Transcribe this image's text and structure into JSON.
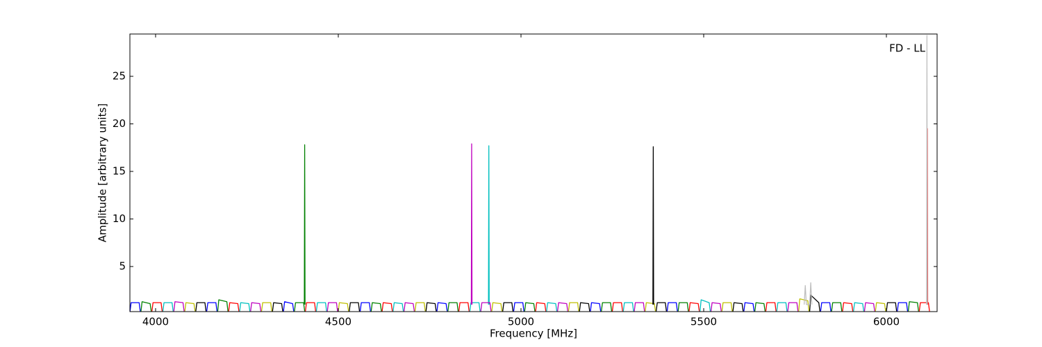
{
  "chart_data": {
    "type": "line",
    "annotation": "FD - LL",
    "x_label": "Frequency [MHz]",
    "y_label": "Amplitude [arbitrary units]",
    "xlim": [
      3929.7,
      6138.8
    ],
    "ylim": [
      0.26,
      29.45
    ],
    "xticks": [
      4000,
      4500,
      5000,
      5500,
      6000
    ],
    "yticks": [
      5,
      10,
      15,
      20,
      25
    ],
    "series": [
      {
        "color": "#0000ff",
        "x": [
          3930,
          3933,
          3955,
          3958,
          null,
          4140,
          4143,
          4165,
          4168,
          null,
          4350,
          4353,
          4375,
          4378,
          null,
          4560,
          4563,
          4585,
          4588,
          null,
          4770,
          4773,
          4795,
          4798,
          null,
          4980,
          4983,
          5005,
          5008,
          null,
          5190,
          5193,
          5215,
          5218,
          null,
          5400,
          5403,
          5425,
          5428,
          null,
          5610,
          5613,
          5635,
          5638,
          null,
          5820,
          5823,
          5845,
          5848,
          null,
          6030,
          6033,
          6055,
          6058
        ],
        "values": [
          0.3,
          1.2,
          1.2,
          0.3,
          null,
          0.3,
          1.2,
          1.2,
          0.3,
          null,
          0.3,
          1.3,
          1.1,
          0.3,
          null,
          0.3,
          1.2,
          1.2,
          0.3,
          null,
          0.3,
          1.2,
          1.1,
          0.3,
          null,
          0.3,
          1.2,
          1.2,
          0.3,
          null,
          0.3,
          1.2,
          1.1,
          0.3,
          null,
          0.3,
          1.2,
          1.2,
          0.3,
          null,
          0.3,
          1.2,
          1.1,
          0.3,
          null,
          0.3,
          1.2,
          1.2,
          0.3,
          null,
          0.3,
          1.2,
          1.2,
          0.3
        ]
      },
      {
        "color": "#008000",
        "x": [
          3960,
          3963,
          3985,
          3988,
          null,
          4170,
          4173,
          4195,
          4198,
          null,
          4380,
          4383,
          4405,
          4408,
          null,
          4590,
          4593,
          4615,
          4618,
          null,
          4800,
          4803,
          4825,
          4828,
          null,
          5010,
          5013,
          5035,
          5038,
          null,
          5220,
          5223,
          5245,
          5248,
          null,
          5430,
          5433,
          5455,
          5458,
          null,
          5640,
          5643,
          5665,
          5668,
          null,
          5850,
          5853,
          5875,
          5878,
          null,
          6060,
          6063,
          6085,
          6088,
          null,
          4407,
          4408,
          4409
        ],
        "values": [
          0.3,
          1.3,
          1.1,
          0.3,
          null,
          0.3,
          1.5,
          1.3,
          0.3,
          null,
          0.3,
          1.2,
          1.2,
          0.3,
          null,
          0.3,
          1.2,
          1.1,
          0.3,
          null,
          0.3,
          1.2,
          1.2,
          0.3,
          null,
          0.3,
          1.2,
          1.1,
          0.3,
          null,
          0.3,
          1.2,
          1.2,
          0.3,
          null,
          0.3,
          1.2,
          1.2,
          0.3,
          null,
          0.3,
          1.2,
          1.1,
          0.3,
          null,
          0.3,
          1.2,
          1.2,
          0.3,
          null,
          0.3,
          1.3,
          1.2,
          0.3,
          null,
          1,
          17.8,
          1
        ]
      },
      {
        "color": "#ff0000",
        "x": [
          3990,
          3993,
          4015,
          4018,
          null,
          4200,
          4203,
          4225,
          4228,
          null,
          4410,
          4413,
          4435,
          4438,
          null,
          4620,
          4623,
          4645,
          4648,
          null,
          4830,
          4833,
          4855,
          4858,
          null,
          5040,
          5043,
          5065,
          5068,
          null,
          5250,
          5253,
          5275,
          5278,
          null,
          5460,
          5463,
          5485,
          5488,
          null,
          5670,
          5673,
          5695,
          5698,
          null,
          5880,
          5883,
          5905,
          5908,
          null,
          6090,
          6093,
          6115,
          6118,
          null,
          6111,
          6112,
          6113
        ],
        "values": [
          0.3,
          1.2,
          1.2,
          0.3,
          null,
          0.3,
          1.2,
          1.1,
          0.3,
          null,
          0.3,
          1.2,
          1.2,
          0.3,
          null,
          0.3,
          1.2,
          1.1,
          0.3,
          null,
          0.3,
          1.2,
          1.2,
          0.3,
          null,
          0.3,
          1.2,
          1.1,
          0.3,
          null,
          0.3,
          1.2,
          1.2,
          0.3,
          null,
          0.3,
          1.2,
          1.1,
          0.3,
          null,
          0.3,
          1.2,
          1.2,
          0.3,
          null,
          0.3,
          1.2,
          1.1,
          0.3,
          null,
          0.3,
          1.2,
          1.2,
          0.3,
          null,
          1,
          19.5,
          1
        ]
      },
      {
        "color": "#00bfbf",
        "x": [
          4020,
          4023,
          4045,
          4048,
          null,
          4230,
          4233,
          4255,
          4258,
          null,
          4440,
          4443,
          4465,
          4468,
          null,
          4650,
          4653,
          4675,
          4678,
          null,
          4860,
          4863,
          4885,
          4888,
          null,
          5070,
          5073,
          5095,
          5098,
          null,
          5280,
          5283,
          5305,
          5308,
          null,
          5490,
          5493,
          5515,
          5518,
          null,
          5700,
          5703,
          5725,
          5728,
          null,
          5910,
          5913,
          5935,
          5938,
          null,
          4911,
          4912,
          4913
        ],
        "values": [
          0.3,
          1.2,
          1.2,
          0.3,
          null,
          0.3,
          1.2,
          1.1,
          0.3,
          null,
          0.3,
          1.2,
          1.2,
          0.3,
          null,
          0.3,
          1.2,
          1.1,
          0.3,
          null,
          0.3,
          1.2,
          1.2,
          0.3,
          null,
          0.3,
          1.2,
          1.1,
          0.3,
          null,
          0.3,
          1.2,
          1.2,
          0.3,
          null,
          0.3,
          1.5,
          1.2,
          0.3,
          null,
          0.3,
          1.2,
          1.2,
          0.3,
          null,
          0.3,
          1.2,
          1.1,
          0.3,
          null,
          1,
          17.7,
          1
        ]
      },
      {
        "color": "#bf00bf",
        "x": [
          4050,
          4053,
          4075,
          4078,
          null,
          4260,
          4263,
          4285,
          4288,
          null,
          4470,
          4473,
          4495,
          4498,
          null,
          4680,
          4683,
          4705,
          4708,
          null,
          4890,
          4893,
          4915,
          4918,
          null,
          5100,
          5103,
          5125,
          5128,
          null,
          5310,
          5313,
          5335,
          5338,
          null,
          5520,
          5523,
          5545,
          5548,
          null,
          5730,
          5733,
          5755,
          5758,
          null,
          5940,
          5943,
          5965,
          5968,
          null,
          4864,
          4865,
          4866
        ],
        "values": [
          0.3,
          1.3,
          1.2,
          0.3,
          null,
          0.3,
          1.2,
          1.1,
          0.3,
          null,
          0.3,
          1.2,
          1.2,
          0.3,
          null,
          0.3,
          1.2,
          1.1,
          0.3,
          null,
          0.3,
          1.2,
          1.2,
          0.3,
          null,
          0.3,
          1.2,
          1.1,
          0.3,
          null,
          0.3,
          1.2,
          1.2,
          0.3,
          null,
          0.3,
          1.2,
          1.1,
          0.3,
          null,
          0.3,
          1.2,
          1.2,
          0.3,
          null,
          0.3,
          1.2,
          1.1,
          0.3,
          null,
          1,
          17.9,
          1
        ]
      },
      {
        "color": "#bfbf00",
        "x": [
          4080,
          4083,
          4105,
          4108,
          null,
          4290,
          4293,
          4315,
          4318,
          null,
          4500,
          4503,
          4525,
          4528,
          null,
          4710,
          4713,
          4735,
          4738,
          null,
          4920,
          4923,
          4945,
          4948,
          null,
          5130,
          5133,
          5155,
          5158,
          null,
          5340,
          5343,
          5365,
          5368,
          null,
          5550,
          5553,
          5575,
          5578,
          null,
          5760,
          5763,
          5785,
          5788,
          null,
          5970,
          5973,
          5995,
          5998
        ],
        "values": [
          0.3,
          1.2,
          1.1,
          0.3,
          null,
          0.3,
          1.2,
          1.2,
          0.3,
          null,
          0.3,
          1.2,
          1.1,
          0.3,
          null,
          0.3,
          1.2,
          1.2,
          0.3,
          null,
          0.3,
          1.2,
          1.1,
          0.3,
          null,
          0.3,
          1.2,
          1.2,
          0.3,
          null,
          0.3,
          1.2,
          1.1,
          0.3,
          null,
          0.3,
          1.2,
          1.2,
          0.3,
          null,
          0.3,
          1.6,
          1.4,
          0.3,
          null,
          0.3,
          1.2,
          1.1,
          0.3
        ]
      },
      {
        "color": "#000000",
        "x": [
          4110,
          4113,
          4135,
          4138,
          null,
          4320,
          4323,
          4345,
          4348,
          null,
          4530,
          4533,
          4555,
          4558,
          null,
          4740,
          4743,
          4765,
          4768,
          null,
          4950,
          4953,
          4975,
          4978,
          null,
          5160,
          5163,
          5185,
          5188,
          null,
          5370,
          5373,
          5395,
          5398,
          null,
          5580,
          5583,
          5605,
          5608,
          null,
          5790,
          5793,
          5815,
          5818,
          null,
          6000,
          6003,
          6025,
          6028,
          null,
          5361,
          5362,
          5363
        ],
        "values": [
          0.3,
          1.2,
          1.2,
          0.3,
          null,
          0.3,
          1.2,
          1.1,
          0.3,
          null,
          0.3,
          1.2,
          1.2,
          0.3,
          null,
          0.3,
          1.2,
          1.1,
          0.3,
          null,
          0.3,
          1.2,
          1.2,
          0.3,
          null,
          0.3,
          1.2,
          1.1,
          0.3,
          null,
          0.3,
          1.2,
          1.2,
          0.3,
          null,
          0.3,
          1.2,
          1.1,
          0.3,
          null,
          0.3,
          2.0,
          1.2,
          0.3,
          null,
          0.3,
          1.2,
          1.2,
          0.3,
          null,
          1,
          17.6,
          1
        ]
      },
      {
        "color": "#bfbfbf",
        "x": [
          5775,
          5778,
          5781,
          5790,
          5793,
          5796,
          null,
          6110,
          6111,
          6112
        ],
        "values": [
          1,
          3.0,
          1,
          1,
          3.3,
          1,
          null,
          1,
          29.3,
          1
        ]
      }
    ]
  }
}
